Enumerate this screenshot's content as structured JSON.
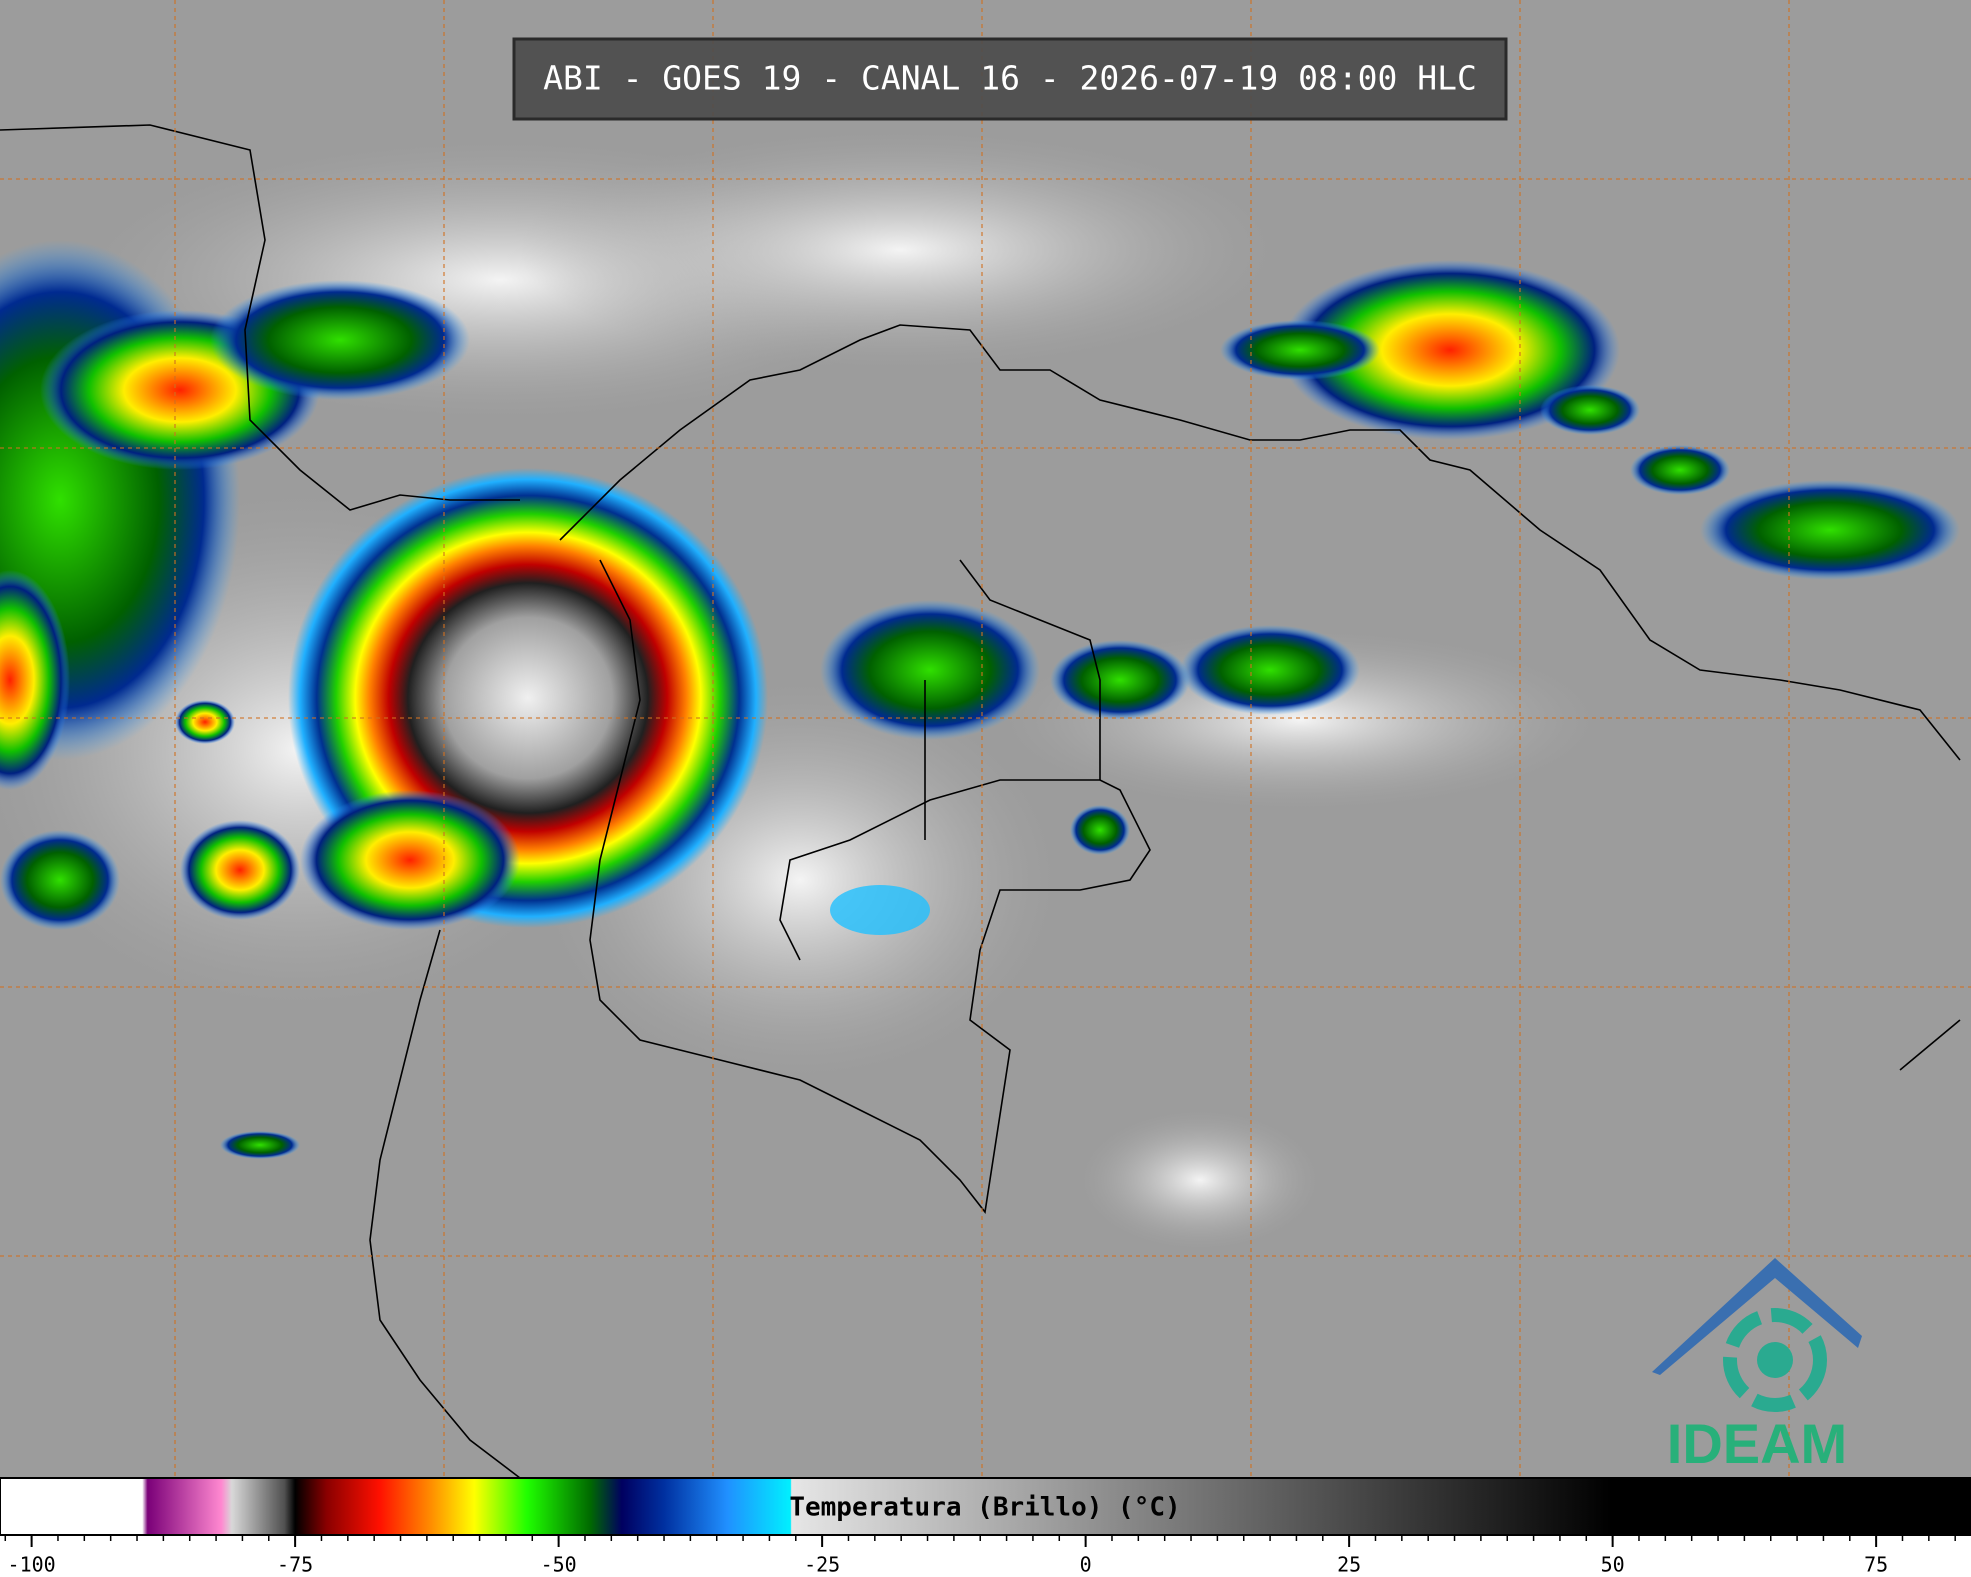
{
  "header": {
    "title": "ABI - GOES 19 - CANAL 16 - 2026-07-19 08:00 HLC"
  },
  "logo": {
    "text": "IDEAM"
  },
  "colorbar": {
    "label": "Temperatura (Brillo) (°C)",
    "lim": [
      -103,
      84
    ],
    "ticks": [
      -100,
      -75,
      -50,
      -25,
      0,
      25,
      50,
      75
    ],
    "minor_tick_step": 2.5,
    "colormap": [
      {
        "value": -103,
        "color": "#ffffff"
      },
      {
        "value": -89.5,
        "color": "#ffffff"
      },
      {
        "value": -89,
        "color": "#7a0078"
      },
      {
        "value": -82,
        "color": "#ff88d0"
      },
      {
        "value": -81,
        "color": "#d8d8d8"
      },
      {
        "value": -76,
        "color": "#505050"
      },
      {
        "value": -75,
        "color": "#000000"
      },
      {
        "value": -72,
        "color": "#8a0000"
      },
      {
        "value": -67,
        "color": "#ff1000"
      },
      {
        "value": -62,
        "color": "#ff9000"
      },
      {
        "value": -58,
        "color": "#ffff00"
      },
      {
        "value": -53,
        "color": "#20ff00"
      },
      {
        "value": -47,
        "color": "#006a00"
      },
      {
        "value": -44,
        "color": "#000060"
      },
      {
        "value": -40,
        "color": "#0030a0"
      },
      {
        "value": -34,
        "color": "#2090ff"
      },
      {
        "value": -28,
        "color": "#00f0ff"
      },
      {
        "value": -27.9,
        "color": "#e6e6e6"
      },
      {
        "value": 50,
        "color": "#000000"
      },
      {
        "value": 84,
        "color": "#000000"
      }
    ]
  }
}
